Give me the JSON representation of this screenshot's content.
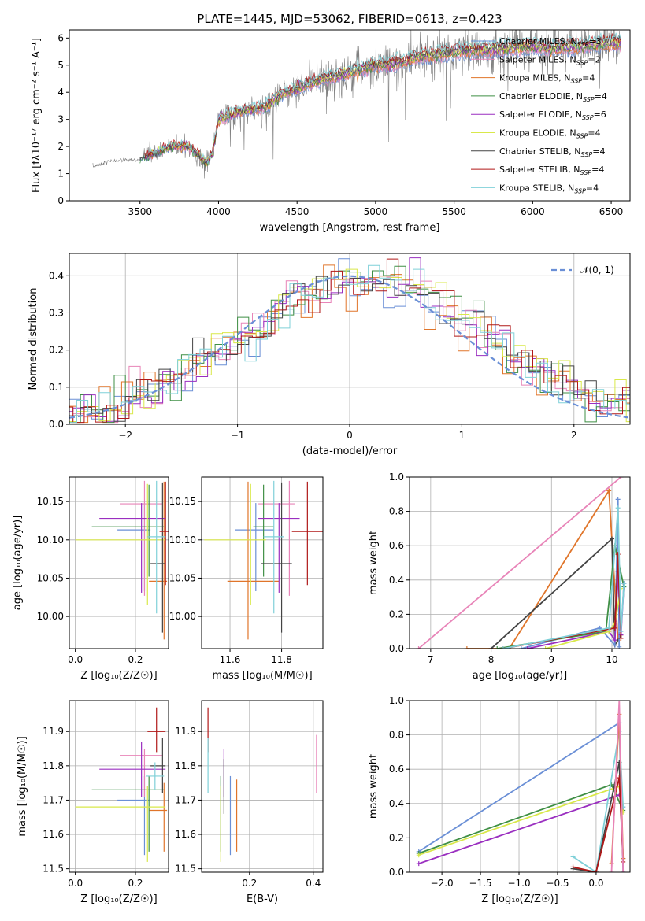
{
  "colors": {
    "Chabrier MILES": "#6a8fd6",
    "Salpeter MILES": "#e884b8",
    "Kroupa MILES": "#e0752a",
    "Chabrier ELODIE": "#3f8f45",
    "Salpeter ELODIE": "#9a2fc0",
    "Kroupa ELODIE": "#d9e84a",
    "Chabrier STELIB": "#444444",
    "Salpeter STELIB": "#b01818",
    "Kroupa STELIB": "#7fd0d8",
    "normal_curve": "#6a8fd6",
    "data_spectrum": "#808080"
  },
  "chart_data": [
    {
      "id": "spectrum",
      "type": "line",
      "title": "PLATE=1445, MJD=53062, FIBERID=0613, z=0.423",
      "xlabel": "wavelength [Angstrom, rest frame]",
      "ylabel": "Flux [fλ10⁻¹⁷ erg cm⁻² s⁻¹ A⁻¹]",
      "xlim": [
        3050,
        6620
      ],
      "ylim": [
        0,
        6.3
      ],
      "xticks": [
        3500,
        4000,
        4500,
        5000,
        5500,
        6000,
        6500
      ],
      "yticks": [
        0,
        1,
        2,
        3,
        4,
        5,
        6
      ],
      "grid": false,
      "legend_position": "top-right",
      "legend": [
        {
          "label": "Chabrier MILES, N",
          "sub": "SSP",
          "suffix": "=3",
          "key": "Chabrier MILES"
        },
        {
          "label": "Salpeter MILES, N",
          "sub": "SSP",
          "suffix": "=2",
          "key": "Salpeter MILES"
        },
        {
          "label": "Kroupa MILES, N",
          "sub": "SSP",
          "suffix": "=4",
          "key": "Kroupa MILES"
        },
        {
          "label": "Chabrier ELODIE, N",
          "sub": "SSP",
          "suffix": "=4",
          "key": "Chabrier ELODIE"
        },
        {
          "label": "Salpeter ELODIE, N",
          "sub": "SSP",
          "suffix": "=6",
          "key": "Salpeter ELODIE"
        },
        {
          "label": "Kroupa ELODIE, N",
          "sub": "SSP",
          "suffix": "=4",
          "key": "Kroupa ELODIE"
        },
        {
          "label": "Chabrier STELIB, N",
          "sub": "SSP",
          "suffix": "=4",
          "key": "Chabrier STELIB"
        },
        {
          "label": "Salpeter STELIB, N",
          "sub": "SSP",
          "suffix": "=4",
          "key": "Salpeter STELIB"
        },
        {
          "label": "Kroupa STELIB, N",
          "sub": "SSP",
          "suffix": "=4",
          "key": "Kroupa STELIB"
        }
      ],
      "continuum": [
        [
          3200,
          1.25
        ],
        [
          3300,
          1.45
        ],
        [
          3400,
          1.5
        ],
        [
          3500,
          1.5
        ],
        [
          3600,
          1.75
        ],
        [
          3700,
          2.0
        ],
        [
          3800,
          2.0
        ],
        [
          3850,
          1.8
        ],
        [
          3920,
          1.4
        ],
        [
          3960,
          1.7
        ],
        [
          4000,
          2.95
        ],
        [
          4100,
          3.2
        ],
        [
          4200,
          3.3
        ],
        [
          4300,
          3.45
        ],
        [
          4400,
          3.9
        ],
        [
          4500,
          4.1
        ],
        [
          4600,
          4.35
        ],
        [
          4700,
          4.5
        ],
        [
          4800,
          4.6
        ],
        [
          4900,
          4.8
        ],
        [
          5000,
          4.95
        ],
        [
          5100,
          5.0
        ],
        [
          5200,
          5.1
        ],
        [
          5300,
          5.3
        ],
        [
          5400,
          5.35
        ],
        [
          5500,
          5.45
        ],
        [
          5600,
          5.5
        ],
        [
          5700,
          5.5
        ],
        [
          5800,
          5.55
        ],
        [
          5900,
          5.6
        ],
        [
          6000,
          5.65
        ],
        [
          6100,
          5.55
        ],
        [
          6200,
          5.6
        ],
        [
          6300,
          5.65
        ],
        [
          6400,
          5.7
        ],
        [
          6500,
          5.75
        ],
        [
          6600,
          5.8
        ]
      ]
    },
    {
      "id": "residuals",
      "type": "histogram",
      "xlabel": "(data-model)/error",
      "ylabel": "Normed distribution",
      "xlim": [
        -2.5,
        2.5
      ],
      "ylim": [
        0,
        0.46
      ],
      "xticks": [
        -2,
        -1,
        0,
        1,
        2
      ],
      "yticks": [
        0.0,
        0.1,
        0.2,
        0.3,
        0.4
      ],
      "grid": true,
      "legend_position": "top-right",
      "legend": [
        "𝒩(0, 1)"
      ],
      "normal_curve": {
        "mean": 0,
        "sigma": 1
      }
    },
    {
      "id": "age_vs_Z",
      "type": "errorbar",
      "xlabel": "Z [log₁₀(Z/Z☉)]",
      "ylabel": "age  [log₁₀(age/yr)]",
      "xlim": [
        -0.02,
        0.31
      ],
      "ylim": [
        9.958,
        10.182
      ],
      "xticks": [
        0.0,
        0.2
      ],
      "yticks": [
        10.0,
        10.05,
        10.1,
        10.15
      ],
      "ytick_labels": [
        "10.00",
        "10.05",
        "10.10",
        "10.15"
      ],
      "grid": true,
      "points": [
        {
          "key": "Chabrier MILES",
          "x": 0.23,
          "xerr": [
            0.09,
            0.02
          ],
          "y": 10.113,
          "yerr": [
            0.08,
            0.035
          ]
        },
        {
          "key": "Salpeter MILES",
          "x": 0.23,
          "xerr": [
            0.08,
            0.06
          ],
          "y": 10.147,
          "yerr": [
            0.12,
            0.03
          ]
        },
        {
          "key": "Kroupa MILES",
          "x": 0.295,
          "xerr": [
            0.05,
            0.01
          ],
          "y": 10.046,
          "yerr": [
            0.076,
            0.13
          ]
        },
        {
          "key": "Chabrier ELODIE",
          "x": 0.245,
          "xerr": [
            0.19,
            0.05
          ],
          "y": 10.117,
          "yerr": [
            0.065,
            0.055
          ]
        },
        {
          "key": "Salpeter ELODIE",
          "x": 0.22,
          "xerr": [
            0.14,
            0.08
          ],
          "y": 10.128,
          "yerr": [
            0.097,
            0.02
          ]
        },
        {
          "key": "Kroupa ELODIE",
          "x": 0.24,
          "xerr": [
            0.24,
            0.06
          ],
          "y": 10.1,
          "yerr": [
            0.085,
            0.073
          ]
        },
        {
          "key": "Chabrier STELIB",
          "x": 0.29,
          "xerr": [
            0.04,
            0.01
          ],
          "y": 10.069,
          "yerr": [
            0.09,
            0.106
          ]
        },
        {
          "key": "Salpeter STELIB",
          "x": 0.3,
          "xerr": [
            0.02,
            0.01
          ],
          "y": 10.111,
          "yerr": [
            0.07,
            0.065
          ]
        },
        {
          "key": "Kroupa STELIB",
          "x": 0.27,
          "xerr": [
            0.03,
            0.03
          ],
          "y": 10.104,
          "yerr": [
            0.1,
            0.073
          ]
        }
      ]
    },
    {
      "id": "age_vs_mass",
      "type": "errorbar",
      "xlabel": "mass [log₁₀(M/M☉)]",
      "xlim": [
        11.49,
        11.96
      ],
      "ylim": [
        9.958,
        10.182
      ],
      "xticks": [
        11.6,
        11.8
      ],
      "yticks": [
        10.0,
        10.05,
        10.1,
        10.15
      ],
      "ytick_labels": [
        "10.00",
        "10.05",
        "10.10",
        "10.15"
      ],
      "grid": true,
      "points": [
        {
          "key": "Chabrier MILES",
          "x": 11.7,
          "xerr": [
            0.08,
            0.07
          ],
          "y": 10.113,
          "yerr": [
            0.08,
            0.035
          ]
        },
        {
          "key": "Salpeter MILES",
          "x": 11.83,
          "xerr": [
            0.12,
            0.02
          ],
          "y": 10.147,
          "yerr": [
            0.12,
            0.03
          ]
        },
        {
          "key": "Kroupa MILES",
          "x": 11.67,
          "xerr": [
            0.08,
            0.12
          ],
          "y": 10.046,
          "yerr": [
            0.076,
            0.13
          ]
        },
        {
          "key": "Chabrier ELODIE",
          "x": 11.73,
          "xerr": [
            0.04,
            0.04
          ],
          "y": 10.117,
          "yerr": [
            0.065,
            0.055
          ]
        },
        {
          "key": "Salpeter ELODIE",
          "x": 11.79,
          "xerr": [
            0.08,
            0.08
          ],
          "y": 10.128,
          "yerr": [
            0.097,
            0.02
          ]
        },
        {
          "key": "Kroupa ELODIE",
          "x": 11.68,
          "xerr": [
            0.18,
            0.06
          ],
          "y": 10.1,
          "yerr": [
            0.085,
            0.073
          ]
        },
        {
          "key": "Chabrier STELIB",
          "x": 11.8,
          "xerr": [
            0.08,
            0.04
          ],
          "y": 10.069,
          "yerr": [
            0.09,
            0.106
          ]
        },
        {
          "key": "Salpeter STELIB",
          "x": 11.9,
          "xerr": [
            0.06,
            0.06
          ],
          "y": 10.111,
          "yerr": [
            0.07,
            0.065
          ]
        },
        {
          "key": "Kroupa STELIB",
          "x": 11.77,
          "xerr": [
            0.04,
            0.04
          ],
          "y": 10.104,
          "yerr": [
            0.1,
            0.073
          ]
        }
      ]
    },
    {
      "id": "massweight_vs_age",
      "type": "line",
      "xlabel": "age  [log₁₀(age/yr)]",
      "ylabel": "mass weight",
      "xlim": [
        6.65,
        10.3
      ],
      "ylim": [
        0,
        1.0
      ],
      "xticks": [
        7,
        8,
        9,
        10
      ],
      "yticks": [
        0.0,
        0.2,
        0.4,
        0.6,
        0.8,
        1.0
      ],
      "grid": true,
      "series": [
        {
          "key": "Salpeter MILES",
          "x": [
            6.8,
            10.15
          ],
          "y": [
            0.0,
            1.0
          ]
        },
        {
          "key": "Kroupa MILES",
          "x": [
            7.6,
            8.3,
            9.95,
            10.1,
            10.15
          ],
          "y": [
            0.0,
            0.0,
            0.92,
            0.05,
            0.08
          ]
        },
        {
          "key": "Chabrier STELIB",
          "x": [
            8.0,
            10.0,
            10.05,
            10.15
          ],
          "y": [
            0.0,
            0.64,
            0.02,
            0.08
          ]
        },
        {
          "key": "Chabrier MILES",
          "x": [
            8.5,
            9.8,
            10.05,
            10.1,
            10.12
          ],
          "y": [
            0.0,
            0.12,
            0.02,
            0.87,
            0.01
          ]
        },
        {
          "key": "Chabrier ELODIE",
          "x": [
            8.1,
            9.9,
            10.05,
            10.2
          ],
          "y": [
            0.0,
            0.1,
            0.6,
            0.36
          ]
        },
        {
          "key": "Salpeter ELODIE",
          "x": [
            8.6,
            9.95,
            10.05,
            10.1,
            10.15,
            10.2
          ],
          "y": [
            0.0,
            0.1,
            0.05,
            0.45,
            0.08,
            0.38
          ]
        },
        {
          "key": "Kroupa ELODIE",
          "x": [
            8.9,
            9.95,
            10.05,
            10.15
          ],
          "y": [
            0.0,
            0.1,
            0.15,
            0.35
          ]
        },
        {
          "key": "Salpeter STELIB",
          "x": [
            8.2,
            10.05,
            10.1,
            10.15
          ],
          "y": [
            0.0,
            0.12,
            0.55,
            0.06
          ]
        },
        {
          "key": "Kroupa STELIB",
          "x": [
            8.2,
            9.95,
            10.1,
            10.15,
            10.2
          ],
          "y": [
            0.0,
            0.12,
            0.82,
            0.1,
            0.38
          ]
        }
      ]
    },
    {
      "id": "mass_vs_Z",
      "type": "errorbar",
      "xlabel": "Z [log₁₀(Z/Z☉)]",
      "ylabel": "mass [log₁₀(M/M☉)]",
      "xlim": [
        -0.02,
        0.31
      ],
      "ylim": [
        11.49,
        11.99
      ],
      "xticks": [
        0.0,
        0.2
      ],
      "yticks": [
        11.5,
        11.6,
        11.7,
        11.8,
        11.9
      ],
      "grid": true,
      "points": [
        {
          "key": "Chabrier MILES",
          "x": 0.23,
          "xerr": [
            0.09,
            0.02
          ],
          "y": 11.7,
          "yerr": [
            0.16,
            0.07
          ]
        },
        {
          "key": "Salpeter MILES",
          "x": 0.23,
          "xerr": [
            0.08,
            0.06
          ],
          "y": 11.83,
          "yerr": [
            0.12,
            0.02
          ]
        },
        {
          "key": "Kroupa MILES",
          "x": 0.295,
          "xerr": [
            0.05,
            0.01
          ],
          "y": 11.67,
          "yerr": [
            0.12,
            0.08
          ]
        },
        {
          "key": "Chabrier ELODIE",
          "x": 0.245,
          "xerr": [
            0.19,
            0.05
          ],
          "y": 11.73,
          "yerr": [
            0.18,
            0.04
          ]
        },
        {
          "key": "Salpeter ELODIE",
          "x": 0.22,
          "xerr": [
            0.14,
            0.08
          ],
          "y": 11.79,
          "yerr": [
            0.08,
            0.08
          ]
        },
        {
          "key": "Kroupa ELODIE",
          "x": 0.24,
          "xerr": [
            0.24,
            0.06
          ],
          "y": 11.68,
          "yerr": [
            0.16,
            0.06
          ]
        },
        {
          "key": "Chabrier STELIB",
          "x": 0.29,
          "xerr": [
            0.04,
            0.01
          ],
          "y": 11.8,
          "yerr": [
            0.08,
            0.08
          ]
        },
        {
          "key": "Salpeter STELIB",
          "x": 0.27,
          "xerr": [
            0.03,
            0.03
          ],
          "y": 11.9,
          "yerr": [
            0.06,
            0.07
          ]
        },
        {
          "key": "Kroupa STELIB",
          "x": 0.265,
          "xerr": [
            0.03,
            0.03
          ],
          "y": 11.77,
          "yerr": [
            0.04,
            0.04
          ]
        }
      ]
    },
    {
      "id": "mass_vs_ebv",
      "type": "errorbar",
      "xlabel": "E(B-V)",
      "xlim": [
        0.05,
        0.43
      ],
      "ylim": [
        11.49,
        11.99
      ],
      "xticks": [
        0.2,
        0.4
      ],
      "yticks": [
        11.5,
        11.6,
        11.7,
        11.8,
        11.9
      ],
      "grid": true,
      "points": [
        {
          "key": "Chabrier MILES",
          "x": 0.14,
          "y": 11.7,
          "yerr": [
            0.16,
            0.07
          ]
        },
        {
          "key": "Salpeter MILES",
          "x": 0.41,
          "y": 11.83,
          "yerr": [
            0.11,
            0.06
          ]
        },
        {
          "key": "Kroupa MILES",
          "x": 0.16,
          "y": 11.67,
          "yerr": [
            0.12,
            0.09
          ]
        },
        {
          "key": "Chabrier ELODIE",
          "x": 0.11,
          "y": 11.73,
          "yerr": [
            0.18,
            0.04
          ]
        },
        {
          "key": "Salpeter ELODIE",
          "x": 0.12,
          "y": 11.79,
          "yerr": [
            0.08,
            0.06
          ]
        },
        {
          "key": "Kroupa ELODIE",
          "x": 0.11,
          "y": 11.68,
          "yerr": [
            0.16,
            0.06
          ]
        },
        {
          "key": "Chabrier STELIB",
          "x": 0.12,
          "y": 11.74,
          "yerr": [
            0.08,
            0.08
          ]
        },
        {
          "key": "Salpeter STELIB",
          "x": 0.07,
          "y": 11.9,
          "yerr": [
            0.06,
            0.07
          ]
        },
        {
          "key": "Kroupa STELIB",
          "x": 0.07,
          "y": 11.8,
          "yerr": [
            0.08,
            0.08
          ]
        }
      ]
    },
    {
      "id": "massweight_vs_Z",
      "type": "line",
      "xlabel": "Z [log₁₀(Z/Z☉)]",
      "ylabel": "mass weight",
      "xlim": [
        -2.42,
        0.44
      ],
      "ylim": [
        0,
        1.0
      ],
      "xticks": [
        -2.0,
        -1.5,
        -1.0,
        -0.5,
        0.0
      ],
      "yticks": [
        0.0,
        0.2,
        0.4,
        0.6,
        0.8,
        1.0
      ],
      "grid": true,
      "series": [
        {
          "key": "Chabrier MILES",
          "x": [
            -2.3,
            0.3,
            0.35
          ],
          "y": [
            0.12,
            0.87,
            0.0
          ]
        },
        {
          "key": "Chabrier ELODIE",
          "x": [
            -2.3,
            0.2,
            0.35
          ],
          "y": [
            0.11,
            0.51,
            0.36
          ]
        },
        {
          "key": "Kroupa ELODIE",
          "x": [
            -2.3,
            0.3,
            0.35
          ],
          "y": [
            0.1,
            0.5,
            0.35
          ]
        },
        {
          "key": "Salpeter ELODIE",
          "x": [
            -2.3,
            0.3,
            0.35
          ],
          "y": [
            0.05,
            0.45,
            0.38
          ]
        },
        {
          "key": "Kroupa STELIB",
          "x": [
            -0.3,
            0.0,
            0.3,
            0.35
          ],
          "y": [
            0.09,
            0.0,
            0.82,
            0.38
          ]
        },
        {
          "key": "Chabrier STELIB",
          "x": [
            -0.3,
            0.0,
            0.3,
            0.35
          ],
          "y": [
            0.02,
            0.0,
            0.64,
            0.08
          ]
        },
        {
          "key": "Salpeter STELIB",
          "x": [
            -0.3,
            0.0,
            0.3,
            0.35
          ],
          "y": [
            0.03,
            0.0,
            0.55,
            0.06
          ]
        },
        {
          "key": "Kroupa MILES",
          "x": [
            0.2,
            0.3,
            0.35
          ],
          "y": [
            0.05,
            0.92,
            0.08
          ]
        },
        {
          "key": "Salpeter MILES",
          "x": [
            0.2,
            0.3,
            0.35
          ],
          "y": [
            0.0,
            1.0,
            0.0
          ]
        }
      ]
    }
  ]
}
